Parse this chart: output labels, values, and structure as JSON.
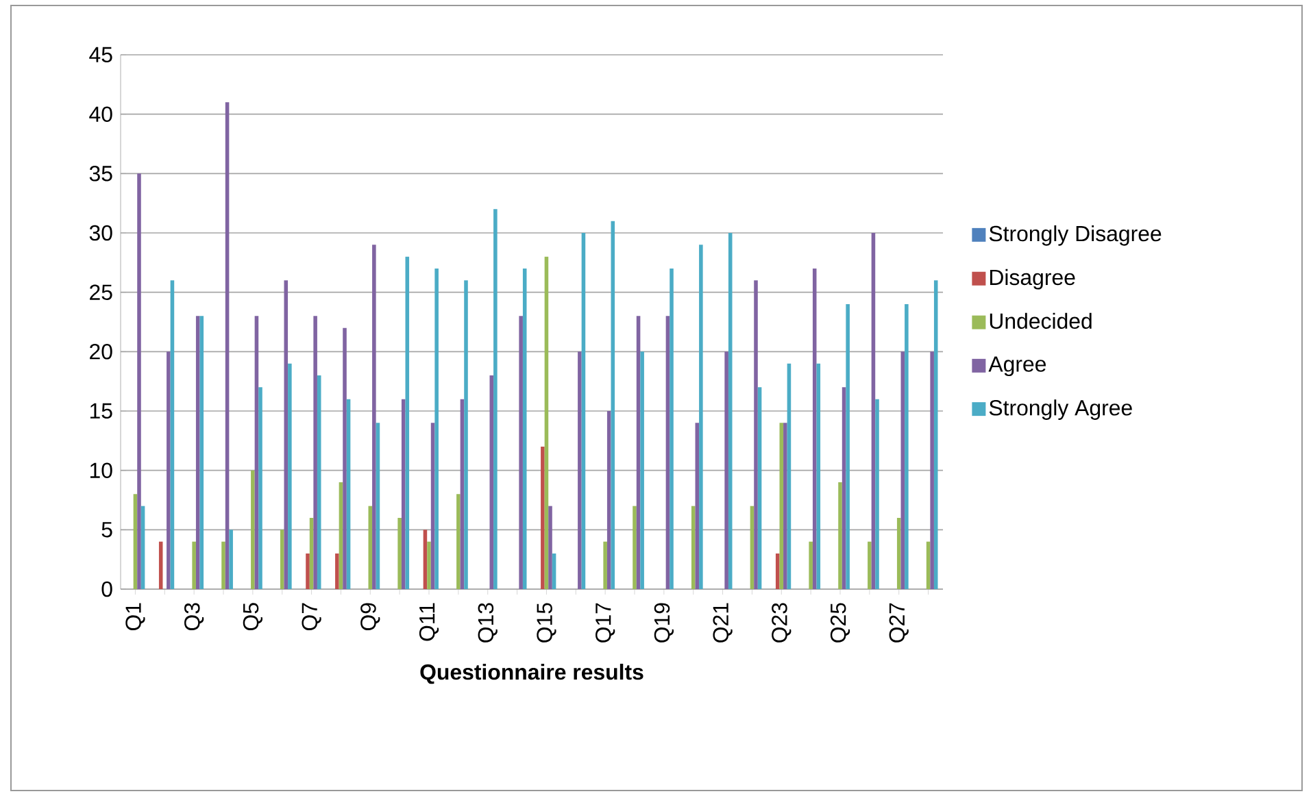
{
  "chart_data": {
    "type": "bar",
    "xlabel": "Questionnaire results",
    "categories": [
      "Q1",
      null,
      "Q3",
      null,
      "Q5",
      null,
      "Q7",
      null,
      "Q9",
      null,
      "Q11",
      null,
      "Q13",
      null,
      "Q15",
      null,
      "Q17",
      null,
      "Q19",
      null,
      "Q21",
      null,
      "Q23",
      null,
      "Q25",
      null,
      "Q27",
      null
    ],
    "series": [
      {
        "name": "Strongly Disagree",
        "color": "#4f81bd",
        "values": [
          0,
          0,
          0,
          0,
          0,
          0,
          0,
          0,
          0,
          0,
          0,
          0,
          0,
          0,
          0,
          0,
          0,
          0,
          0,
          0,
          0,
          0,
          0,
          0,
          0,
          0,
          0,
          0
        ]
      },
      {
        "name": "Disagree",
        "color": "#c0504d",
        "values": [
          0,
          4,
          0,
          0,
          0,
          0,
          3,
          3,
          0,
          0,
          5,
          0,
          0,
          0,
          12,
          0,
          0,
          0,
          0,
          0,
          0,
          0,
          3,
          0,
          0,
          0,
          0,
          0
        ]
      },
      {
        "name": "Undecided",
        "color": "#9bbb59",
        "values": [
          8,
          0,
          4,
          4,
          10,
          5,
          6,
          9,
          7,
          6,
          4,
          8,
          0,
          0,
          28,
          0,
          4,
          7,
          0,
          7,
          0,
          7,
          14,
          4,
          9,
          4,
          6,
          4
        ]
      },
      {
        "name": "Agree",
        "color": "#8064a2",
        "values": [
          35,
          20,
          23,
          41,
          23,
          26,
          23,
          22,
          29,
          16,
          14,
          16,
          18,
          23,
          7,
          20,
          15,
          23,
          23,
          14,
          20,
          26,
          14,
          27,
          17,
          30,
          20,
          20
        ]
      },
      {
        "name": "Strongly Agree",
        "color": "#4bacc6",
        "values": [
          7,
          26,
          23,
          5,
          17,
          19,
          18,
          16,
          14,
          28,
          27,
          26,
          32,
          27,
          3,
          30,
          31,
          20,
          27,
          29,
          30,
          17,
          19,
          19,
          24,
          16,
          24,
          26
        ]
      }
    ],
    "ylim": [
      0,
      45
    ],
    "yticks": [
      0,
      5,
      10,
      15,
      20,
      25,
      30,
      35,
      40,
      45
    ],
    "grid": "y",
    "legend": "right"
  }
}
